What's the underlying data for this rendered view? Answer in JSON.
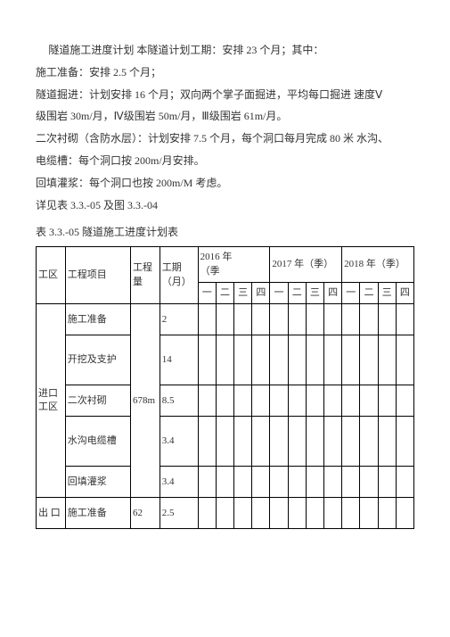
{
  "paragraphs": {
    "p1": "隧道施工进度计划  本隧道计划工期：安排 23 个月；其中：",
    "p2": "施工准备：安排 2.5 个月；",
    "p3_a": "隧道掘进：计划安排 16 个月；双向两个掌子面掘进，平均每口掘进 速度",
    "p3_v": "Ⅴ",
    "p4_a": "级围岩 30m/月，",
    "p4_w": "Ⅳ",
    "p4_b": "级围岩 50m/月，Ⅲ级围岩 61m/月。",
    "p5": "二次衬砌（含防水层）：计划安排 7.5 个月，每个洞口每月完成 80 米  水沟、",
    "p6": "电缆槽：每个洞口按 200m/月安排。",
    "p7_a": "回填灌浆：每个洞口也按 200m/",
    "p7_m": "M",
    "p7_b": " 考虑。",
    "p8": "详见表 3.3.-05 及图 3.3.-04",
    "table_title": " 表 3.3.-05    隧道施工进度计划表"
  },
  "table": {
    "headers": {
      "zone": "工区",
      "item": "工程项目",
      "eng": "工程量",
      "duration": "工期（月）",
      "y2016": "2016",
      "year_suffix": "年",
      "season": "（季",
      "season_close": "）",
      "y2017": "2017 年（季）",
      "y2018": "2018 年（季）",
      "q1": "一",
      "q2": "二",
      "q3": "三",
      "q4": "四"
    },
    "rows": {
      "zone1": "进口工区",
      "zone1_eng": "678m",
      "r1_item": "施工准备",
      "r1_dur": "2",
      "r2_item": "开挖及支护",
      "r2_dur": "14",
      "r3_item": "二次衬砌",
      "r3_dur": "8.5",
      "r4_item": "水沟电缆槽",
      "r4_dur": "3.4",
      "r5_item": "回填灌浆",
      "r5_dur": "3.4",
      "zone2": "出 口",
      "zone2_eng": "62",
      "r6_item": "施工准备",
      "r6_dur": "2.5"
    }
  }
}
